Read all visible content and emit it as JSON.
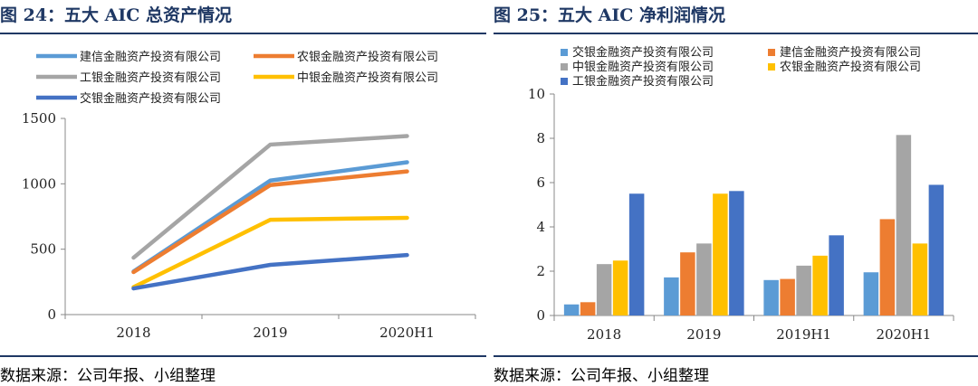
{
  "charts": [
    {
      "title": "图 24：五大 AIC 总资产情况",
      "source": "数据来源：公司年报、小组整理",
      "chart_data": {
        "type": "line",
        "categories": [
          "2018",
          "2019",
          "2020H1"
        ],
        "ylim": [
          0,
          1500
        ],
        "yticks": [
          0,
          500,
          1000,
          1500
        ],
        "grid": false,
        "legend_position": "top",
        "series": [
          {
            "name": "建信金融资产投资有限公司",
            "color": "#5b9bd5",
            "values": [
              330,
              1025,
              1165
            ]
          },
          {
            "name": "农银金融资产投资有限公司",
            "color": "#ed7d31",
            "values": [
              325,
              990,
              1095
            ]
          },
          {
            "name": "工银金融资产投资有限公司",
            "color": "#a5a5a5",
            "values": [
              435,
              1300,
              1365
            ]
          },
          {
            "name": "中银金融资产投资有限公司",
            "color": "#ffc000",
            "values": [
              210,
              725,
              740
            ]
          },
          {
            "name": "交银金融资产投资有限公司",
            "color": "#4472c4",
            "values": [
              200,
              380,
              455
            ]
          }
        ]
      }
    },
    {
      "title": "图 25：五大 AIC 净利润情况",
      "source": "数据来源：公司年报、小组整理",
      "chart_data": {
        "type": "bar",
        "categories": [
          "2018",
          "2019",
          "2019H1",
          "2020H1"
        ],
        "ylim": [
          0,
          10
        ],
        "yticks": [
          0,
          2,
          4,
          6,
          8,
          10
        ],
        "grid": false,
        "legend_position": "top",
        "series": [
          {
            "name": "交银金融资产投资有限公司",
            "color": "#5b9bd5",
            "values": [
              0.5,
              1.72,
              1.6,
              1.95
            ]
          },
          {
            "name": "建信金融资产投资有限公司",
            "color": "#ed7d31",
            "values": [
              0.6,
              2.85,
              1.65,
              4.35
            ]
          },
          {
            "name": "中银金融资产投资有限公司",
            "color": "#a5a5a5",
            "values": [
              2.32,
              3.25,
              2.25,
              8.15
            ]
          },
          {
            "name": "农银金融资产投资有限公司",
            "color": "#ffc000",
            "values": [
              2.48,
              5.5,
              2.7,
              3.25
            ]
          },
          {
            "name": "工银金融资产投资有限公司",
            "color": "#4472c4",
            "values": [
              5.5,
              5.62,
              3.62,
              5.9
            ]
          }
        ]
      }
    }
  ]
}
